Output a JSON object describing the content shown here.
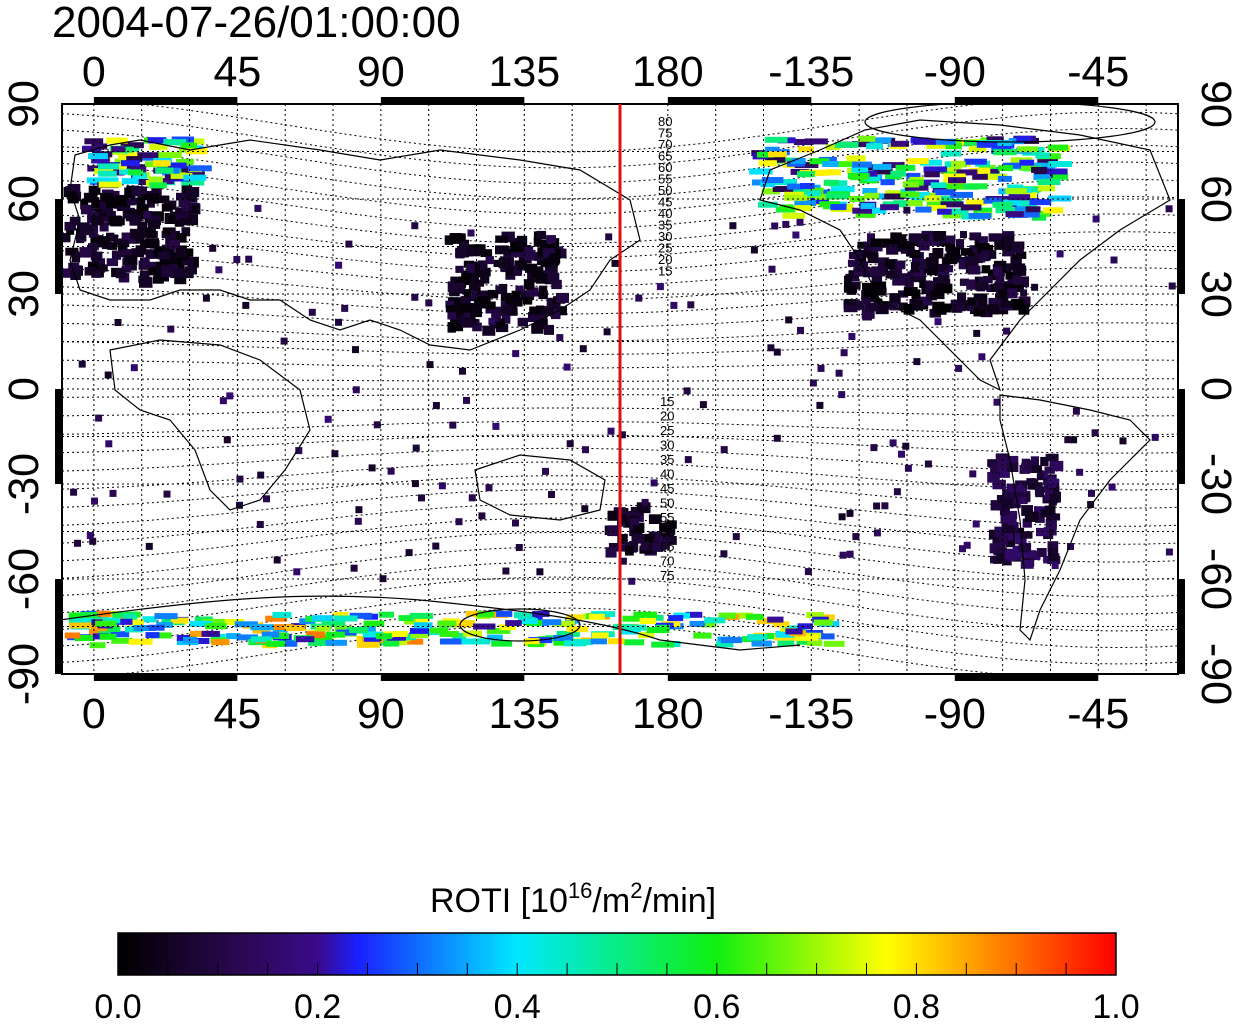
{
  "title": "2004-07-26/01:00:00",
  "map": {
    "projection": "equirectangular",
    "lon_range": [
      -10,
      340
    ],
    "lat_range": [
      -90,
      90
    ],
    "top_lon_ticks": [
      "0",
      "45",
      "90",
      "135",
      "180",
      "-135",
      "-90",
      "-45"
    ],
    "bottom_lon_ticks": [
      "0",
      "45",
      "90",
      "135",
      "180",
      "-135",
      "-90",
      "-45"
    ],
    "top_lon_values": [
      0,
      45,
      90,
      135,
      180,
      225,
      270,
      315
    ],
    "left_lat_ticks": [
      "90",
      "60",
      "30",
      "0",
      "-30",
      "-60",
      "-90"
    ],
    "right_lat_ticks": [
      "90",
      "60",
      "30",
      "0",
      "-30",
      "-60",
      "-90"
    ],
    "lat_values": [
      90,
      60,
      30,
      0,
      -30,
      -60,
      -90
    ],
    "grid": true,
    "terminator_lon": 165,
    "terminator_color": "#dd1111",
    "magnetic_latitude_labels_north": [
      "80",
      "75",
      "70",
      "65",
      "60",
      "55",
      "50",
      "45",
      "40",
      "35",
      "30",
      "25",
      "20",
      "15"
    ],
    "magnetic_latitude_labels_south": [
      "15",
      "20",
      "25",
      "30",
      "35",
      "40",
      "45",
      "50",
      "55",
      "60",
      "65",
      "70",
      "75"
    ]
  },
  "colorbar": {
    "label": "ROTI  [10",
    "label_exp": "16",
    "label_unit": "/m",
    "label_exp2": "2",
    "label_tail": "/min]",
    "ticks": [
      "0.0",
      "0.2",
      "0.4",
      "0.6",
      "0.8",
      "1.0"
    ],
    "range": [
      0,
      1
    ],
    "colors": [
      "#000000",
      "#3a0a6a",
      "#2030ff",
      "#00e8ff",
      "#10f010",
      "#ffff00",
      "#ff0000"
    ]
  },
  "chart_data": {
    "type": "heatmap",
    "title": "2004-07-26/01:00:00",
    "xlabel": "",
    "ylabel": "",
    "xlim": [
      -10,
      340
    ],
    "ylim": [
      -90,
      90
    ],
    "value_label": "ROTI [10^16/m^2/min]",
    "value_range": [
      0,
      1
    ],
    "regions": [
      {
        "lon": [
          -10,
          30
        ],
        "lat": [
          35,
          65
        ],
        "value": 0.05
      },
      {
        "lon": [
          -5,
          30
        ],
        "lat": [
          65,
          80
        ],
        "value": 0.45
      },
      {
        "lon": [
          235,
          290
        ],
        "lat": [
          25,
          50
        ],
        "value": 0.05
      },
      {
        "lon": [
          205,
          300
        ],
        "lat": [
          55,
          80
        ],
        "value": 0.45
      },
      {
        "lon": [
          110,
          145
        ],
        "lat": [
          20,
          50
        ],
        "value": 0.05
      },
      {
        "lon": [
          160,
          180
        ],
        "lat": [
          -50,
          -35
        ],
        "value": 0.05
      },
      {
        "lon": [
          -10,
          230
        ],
        "lat": [
          -80,
          -70
        ],
        "value": 0.55
      },
      {
        "lon": [
          280,
          300
        ],
        "lat": [
          -55,
          -20
        ],
        "value": 0.1
      }
    ]
  }
}
